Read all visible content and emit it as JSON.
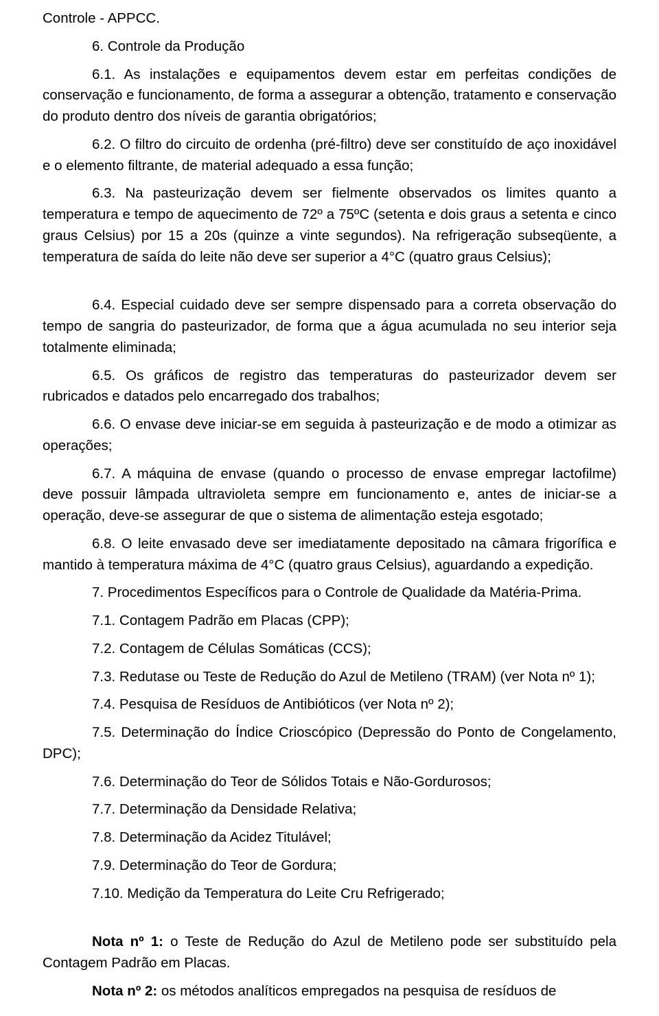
{
  "para": {
    "p1": "Controle - APPCC.",
    "p2": "6. Controle da Produção",
    "p3": "6.1. As instalações e equipamentos devem estar em perfeitas condições de conservação e funcionamento, de forma a assegurar a obtenção, tratamento e conservação do produto dentro dos níveis de garantia obrigatórios;",
    "p4": "6.2. O filtro do circuito de ordenha (pré-filtro) deve ser constituído de aço inoxidável e o elemento filtrante, de material adequado a essa função;",
    "p5": "6.3. Na pasteurização devem ser fielmente observados os limites quanto a temperatura e tempo de aquecimento de 72º a 75ºC (setenta e dois graus a setenta e cinco graus Celsius) por 15 a 20s (quinze a vinte segundos). Na refrigeração subseqüente, a temperatura de saída do leite não deve ser superior a 4°C (quatro graus Celsius);",
    "p6": "6.4. Especial cuidado deve ser sempre dispensado para a correta observação do tempo de sangria do pasteurizador, de forma que a água acumulada no seu interior seja totalmente eliminada;",
    "p7": "6.5. Os gráficos de registro das temperaturas do pasteurizador devem ser rubricados e datados pelo encarregado dos trabalhos;",
    "p8": "6.6. O envase deve iniciar-se em seguida à pasteurização e de modo a otimizar as operações;",
    "p9": "6.7. A máquina de envase (quando o processo de envase empregar lactofilme) deve possuir lâmpada ultravioleta sempre em funcionamento e, antes de iniciar-se a operação, deve-se assegurar de que o sistema de alimentação esteja esgotado;",
    "p10": "6.8. O leite envasado deve ser imediatamente depositado na câmara frigorífica e mantido à temperatura máxima de 4°C (quatro graus Celsius), aguardando a expedição.",
    "p11": "7. Procedimentos Específicos para o Controle de Qualidade da Matéria-Prima.",
    "p12": "7.1. Contagem Padrão em Placas (CPP);",
    "p13": "7.2. Contagem de Células Somáticas (CCS);",
    "p14": "7.3. Redutase ou Teste de Redução do Azul de Metileno (TRAM) (ver Nota nº 1);",
    "p15": "7.4. Pesquisa de Resíduos de Antibióticos (ver Nota nº 2);",
    "p16": "7.5. Determinação do Índice Crioscópico (Depressão do Ponto de Congelamento, DPC);",
    "p17": "7.6. Determinação do Teor de Sólidos Totais e Não-Gordurosos;",
    "p18": "7.7. Determinação da Densidade Relativa;",
    "p19": "7.8. Determinação da Acidez Titulável;",
    "p20": "7.9. Determinação do Teor de Gordura;",
    "p21": "7.10. Medição da Temperatura do Leite Cru Refrigerado;",
    "p22a": "Nota nº 1:",
    "p22b": " o Teste de Redução do Azul de Metileno pode ser substituído pela Contagem Padrão em Placas.",
    "p23a": "Nota nº 2:",
    "p23b": " os métodos analíticos empregados na pesquisa de resíduos de"
  }
}
